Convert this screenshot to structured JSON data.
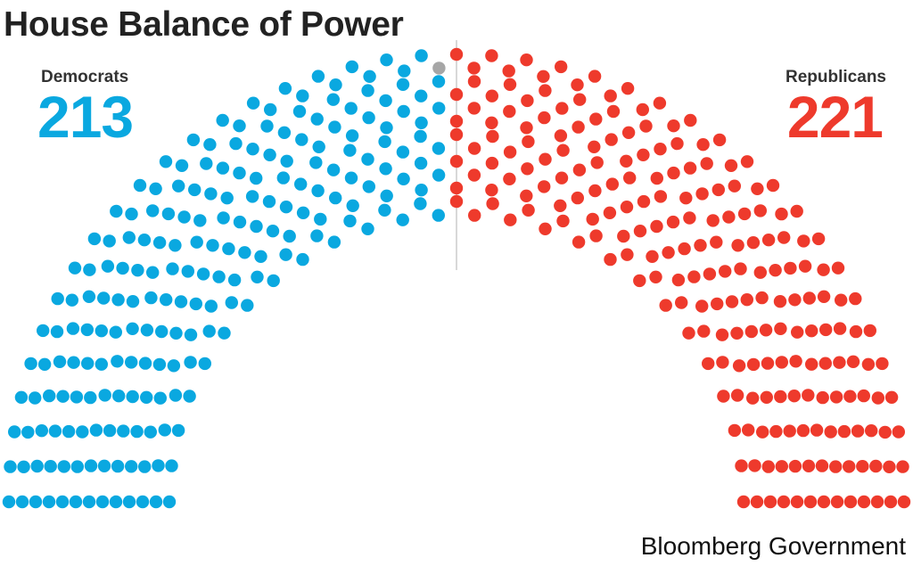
{
  "title": "House Balance of Power",
  "source": "Bloomberg Government",
  "colors": {
    "democrats": "#0aa8e0",
    "republicans": "#ee3a2c",
    "vacant": "#a6a6a6",
    "divider": "#cccccc"
  },
  "chart_data": {
    "type": "parliament",
    "title": "House Balance of Power",
    "total_seats": 435,
    "series": [
      {
        "name": "Democrats",
        "label": "Democrats",
        "count_label": "213",
        "seats": 213,
        "color": "#0aa8e0"
      },
      {
        "name": "Vacant",
        "seats": 1,
        "color": "#a6a6a6"
      },
      {
        "name": "Republicans",
        "label": "Republicans",
        "count_label": "221",
        "seats": 221,
        "color": "#ee3a2c"
      }
    ]
  }
}
